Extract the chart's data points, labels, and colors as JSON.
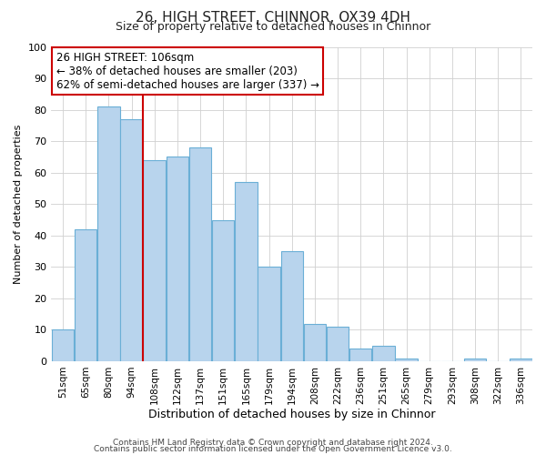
{
  "title": "26, HIGH STREET, CHINNOR, OX39 4DH",
  "subtitle": "Size of property relative to detached houses in Chinnor",
  "xlabel": "Distribution of detached houses by size in Chinnor",
  "ylabel": "Number of detached properties",
  "categories": [
    "51sqm",
    "65sqm",
    "80sqm",
    "94sqm",
    "108sqm",
    "122sqm",
    "137sqm",
    "151sqm",
    "165sqm",
    "179sqm",
    "194sqm",
    "208sqm",
    "222sqm",
    "236sqm",
    "251sqm",
    "265sqm",
    "279sqm",
    "293sqm",
    "308sqm",
    "322sqm",
    "336sqm"
  ],
  "values": [
    10,
    42,
    81,
    77,
    64,
    65,
    68,
    45,
    57,
    30,
    35,
    12,
    11,
    4,
    5,
    1,
    0,
    0,
    1,
    0,
    1
  ],
  "bar_color": "#b8d4ed",
  "bar_edge_color": "#6aafd6",
  "annotation_title": "26 HIGH STREET: 106sqm",
  "annotation_line1": "← 38% of detached houses are smaller (203)",
  "annotation_line2": "62% of semi-detached houses are larger (337) →",
  "annotation_box_color": "#ffffff",
  "annotation_box_edge": "#cc0000",
  "vline_color": "#cc0000",
  "ylim": [
    0,
    100
  ],
  "yticks": [
    0,
    10,
    20,
    30,
    40,
    50,
    60,
    70,
    80,
    90,
    100
  ],
  "footer1": "Contains HM Land Registry data © Crown copyright and database right 2024.",
  "footer2": "Contains public sector information licensed under the Open Government Licence v3.0.",
  "background_color": "#ffffff",
  "grid_color": "#d0d0d0",
  "title_fontsize": 11,
  "subtitle_fontsize": 9,
  "ylabel_fontsize": 8,
  "xlabel_fontsize": 9,
  "tick_fontsize": 8,
  "xtick_fontsize": 7.5,
  "footer_fontsize": 6.5,
  "annotation_fontsize": 8.5,
  "vline_x_index": 3.5
}
